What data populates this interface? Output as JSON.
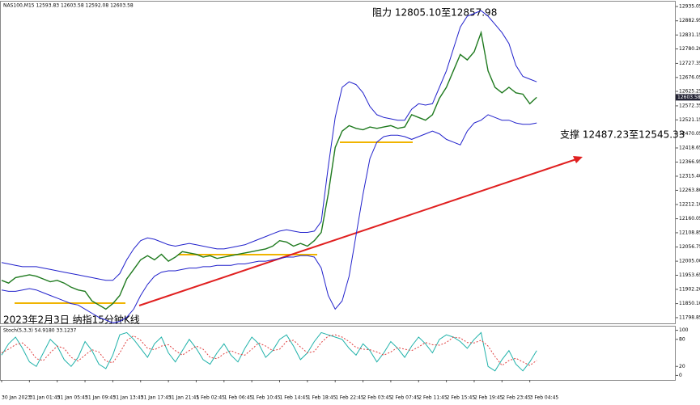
{
  "chart_data": [
    {
      "type": "line",
      "title": "NAS100,M15 12593.83 12603.58 12592.08 12603.58",
      "annotations": [
        "阻力 12805.10至12857.98",
        "支撑 12487.23至12545.33",
        "2023年2月3日 纳指15分钟K线"
      ],
      "price_label": 12603.58,
      "xlim": [
        0,
        97
      ],
      "ylim": [
        11778,
        12953
      ],
      "yticks": [
        12935.05,
        12882.95,
        12831.15,
        {
          "value": 12780.2,
          "label": "12780.20"
        },
        12727.35,
        12676.05,
        12625.25,
        12572.35,
        12521.15,
        12470.05,
        12418.65,
        12366.95,
        {
          "value": 12315.4,
          "label": "12315.40"
        },
        {
          "value": 12263.8,
          "label": "12263.80"
        },
        {
          "value": 12212.1,
          "label": "12212.10"
        },
        12160.05,
        12108.85,
        12056.75,
        {
          "value": 12005,
          "label": "12005.00"
        },
        11953.65,
        {
          "value": 11902.2,
          "label": "11902.20"
        },
        {
          "value": 11850.1,
          "label": "11850.10"
        },
        11798.85
      ],
      "series": [
        {
          "color": "#1f7a1f",
          "values": [
            11935,
            11925,
            11945,
            11950,
            11955,
            11950,
            11940,
            11930,
            11935,
            11925,
            11910,
            11900,
            11895,
            11860,
            11845,
            11830,
            11850,
            11880,
            11940,
            11975,
            12010,
            12025,
            12010,
            12030,
            12005,
            12020,
            12040,
            12035,
            12030,
            12020,
            12025,
            12015,
            12020,
            12025,
            12030,
            12035,
            12040,
            12045,
            12050,
            12060,
            12080,
            12075,
            12060,
            12070,
            12060,
            12080,
            12110,
            12250,
            12420,
            12480,
            12500,
            12490,
            12485,
            12495,
            12490,
            12495,
            12500,
            12490,
            12495,
            12540,
            12530,
            12520,
            12540,
            12600,
            12640,
            12700,
            12760,
            12740,
            12770,
            12840,
            12700,
            12640,
            12620,
            12640,
            12620,
            12615,
            12580,
            12603.58
          ]
        },
        {
          "color": "#2222cc",
          "values": [
            12000,
            11995,
            11990,
            11985,
            11985,
            11985,
            11980,
            11975,
            11970,
            11965,
            11960,
            11955,
            11950,
            11945,
            11940,
            11935,
            11935,
            11960,
            12010,
            12050,
            12080,
            12090,
            12085,
            12075,
            12065,
            12060,
            12065,
            12070,
            12065,
            12060,
            12055,
            12050,
            12050,
            12055,
            12060,
            12065,
            12075,
            12085,
            12095,
            12105,
            12115,
            12120,
            12115,
            12110,
            12110,
            12115,
            12150,
            12350,
            12530,
            12640,
            12660,
            12650,
            12620,
            12570,
            12540,
            12530,
            12525,
            12520,
            12520,
            12560,
            12580,
            12575,
            12580,
            12640,
            12700,
            12780,
            12860,
            12900,
            12910,
            12920,
            12900,
            12870,
            12840,
            12800,
            12720,
            12680,
            12670,
            12660
          ]
        },
        {
          "color": "#2222cc",
          "values": [
            11900,
            11895,
            11895,
            11900,
            11905,
            11900,
            11890,
            11880,
            11870,
            11860,
            11850,
            11845,
            11830,
            11815,
            11800,
            11790,
            11780,
            11785,
            11800,
            11830,
            11880,
            11920,
            11950,
            11965,
            11970,
            11970,
            11975,
            11980,
            11980,
            11985,
            11985,
            11990,
            11990,
            11990,
            11995,
            11995,
            12000,
            12005,
            12005,
            12010,
            12015,
            12020,
            12020,
            12025,
            12025,
            12020,
            11980,
            11880,
            11830,
            11860,
            11950,
            12100,
            12250,
            12380,
            12440,
            12460,
            12465,
            12465,
            12460,
            12450,
            12460,
            12470,
            12480,
            12470,
            12450,
            12440,
            12430,
            12480,
            12510,
            12520,
            12540,
            12530,
            12520,
            12520,
            12510,
            12505,
            12505,
            12510
          ]
        }
      ]
    },
    {
      "type": "line",
      "title": "Stoch(5,3,3) 54.9180 33.1237",
      "xlim": [
        0,
        97
      ],
      "ylim": [
        -10,
        110
      ],
      "yticks": [
        100,
        80,
        20,
        0
      ],
      "xticks": [
        {
          "value": 0,
          "label": "30 Jan 2023"
        },
        {
          "value": 4,
          "label": "31 Jan 01:45"
        },
        {
          "value": 8,
          "label": "31 Jan 05:45"
        },
        {
          "value": 12,
          "label": "31 Jan 09:45"
        },
        {
          "value": 16,
          "label": "31 Jan 13:45"
        },
        {
          "value": 20,
          "label": "31 Jan 17:45"
        },
        {
          "value": 24,
          "label": "31 Jan 21:45"
        },
        {
          "value": 28,
          "label": "1 Feb 02:45"
        },
        {
          "value": 32,
          "label": "1 Feb 06:45"
        },
        {
          "value": 36,
          "label": "1 Feb 10:45"
        },
        {
          "value": 40,
          "label": "1 Feb 14:45"
        },
        {
          "value": 44,
          "label": "1 Feb 18:45"
        },
        {
          "value": 48,
          "label": "1 Feb 22:45"
        },
        {
          "value": 52,
          "label": "2 Feb 03:45"
        },
        {
          "value": 56,
          "label": "2 Feb 07:45"
        },
        {
          "value": 60,
          "label": "2 Feb 11:45"
        },
        {
          "value": 64,
          "label": "2 Feb 15:45"
        },
        {
          "value": 68,
          "label": "2 Feb 19:45"
        },
        {
          "value": 72,
          "label": "2 Feb 23:45"
        },
        {
          "value": 76,
          "label": "3 Feb 04:45"
        }
      ],
      "series": [
        {
          "color": "#20b2aa",
          "values": [
            45,
            70,
            85,
            60,
            30,
            20,
            50,
            80,
            65,
            35,
            20,
            40,
            75,
            55,
            25,
            15,
            45,
            90,
            95,
            80,
            60,
            40,
            70,
            85,
            50,
            30,
            55,
            80,
            60,
            35,
            25,
            50,
            70,
            45,
            30,
            60,
            85,
            70,
            40,
            55,
            80,
            90,
            65,
            35,
            50,
            75,
            95,
            90,
            85,
            80,
            60,
            45,
            70,
            55,
            30,
            50,
            75,
            60,
            40,
            65,
            85,
            70,
            50,
            80,
            90,
            85,
            75,
            60,
            80,
            95,
            20,
            10,
            35,
            55,
            25,
            10,
            30,
            54.918
          ]
        },
        {
          "color": "#e04040",
          "dashed": true,
          "values": [
            50,
            58,
            68,
            72,
            58,
            37,
            33,
            50,
            65,
            60,
            40,
            32,
            45,
            57,
            52,
            32,
            28,
            50,
            77,
            88,
            78,
            60,
            57,
            65,
            68,
            55,
            45,
            55,
            65,
            58,
            40,
            37,
            48,
            55,
            48,
            45,
            58,
            72,
            65,
            55,
            58,
            75,
            78,
            63,
            50,
            53,
            73,
            87,
            90,
            85,
            75,
            62,
            58,
            57,
            52,
            45,
            52,
            62,
            58,
            55,
            63,
            73,
            68,
            67,
            73,
            85,
            83,
            73,
            72,
            78,
            65,
            42,
            22,
            33,
            38,
            30,
            22,
            33.1237
          ]
        }
      ]
    }
  ]
}
